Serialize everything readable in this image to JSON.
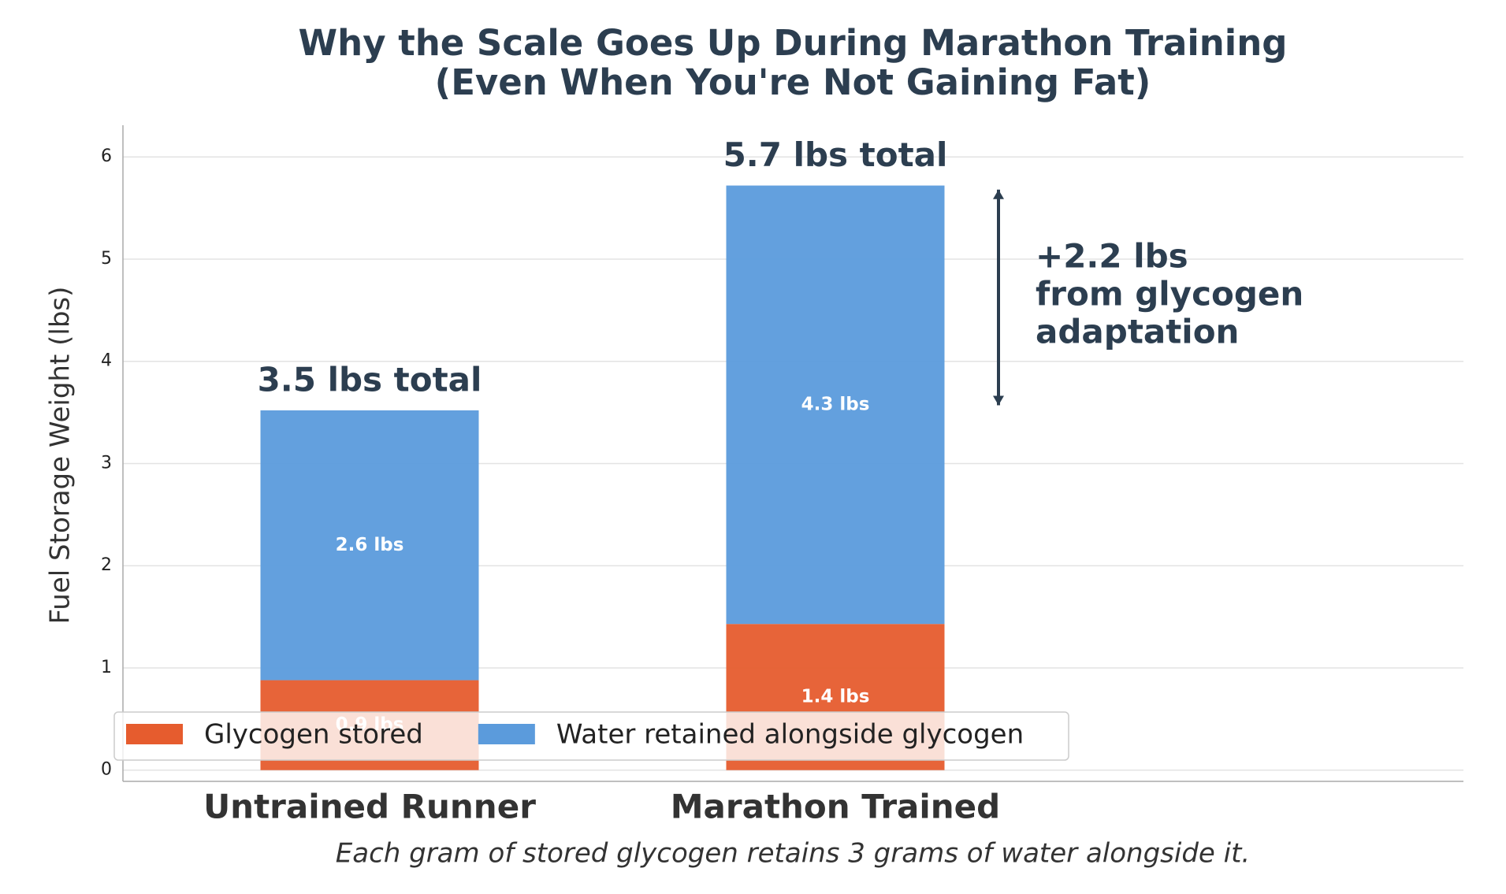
{
  "chart_data": {
    "type": "stacked_bar",
    "title": [
      "Why the Scale Goes Up During Marathon Training",
      "(Even When You're Not Gaining Fat)"
    ],
    "ylabel": "Fuel Storage Weight (lbs)",
    "footnote": "Each gram of stored glycogen retains 3 grams of water alongside it.",
    "categories": [
      "Untrained Runner",
      "Marathon Trained"
    ],
    "series": [
      {
        "name": "Glycogen stored",
        "color": "#e65c2e",
        "values": [
          0.88,
          1.43
        ],
        "value_labels": [
          "0.9 lbs",
          "1.4 lbs"
        ]
      },
      {
        "name": "Water retained alongside glycogen",
        "color": "#5b9bdc",
        "values": [
          2.64,
          4.29
        ],
        "value_labels": [
          "2.6 lbs",
          "4.3 lbs"
        ]
      }
    ],
    "totals": [
      {
        "value": 3.52,
        "label": "3.5 lbs total"
      },
      {
        "value": 5.72,
        "label": "5.7 lbs total"
      }
    ],
    "annotation": {
      "text": [
        "+2.2 lbs",
        "from glycogen",
        "adaptation"
      ],
      "from": 3.57,
      "to": 5.68
    },
    "ylim": [
      -0.11,
      6.31
    ],
    "yticks": [
      0,
      1,
      2,
      3,
      4,
      5,
      6
    ],
    "grid": true,
    "legend": "lower left"
  }
}
